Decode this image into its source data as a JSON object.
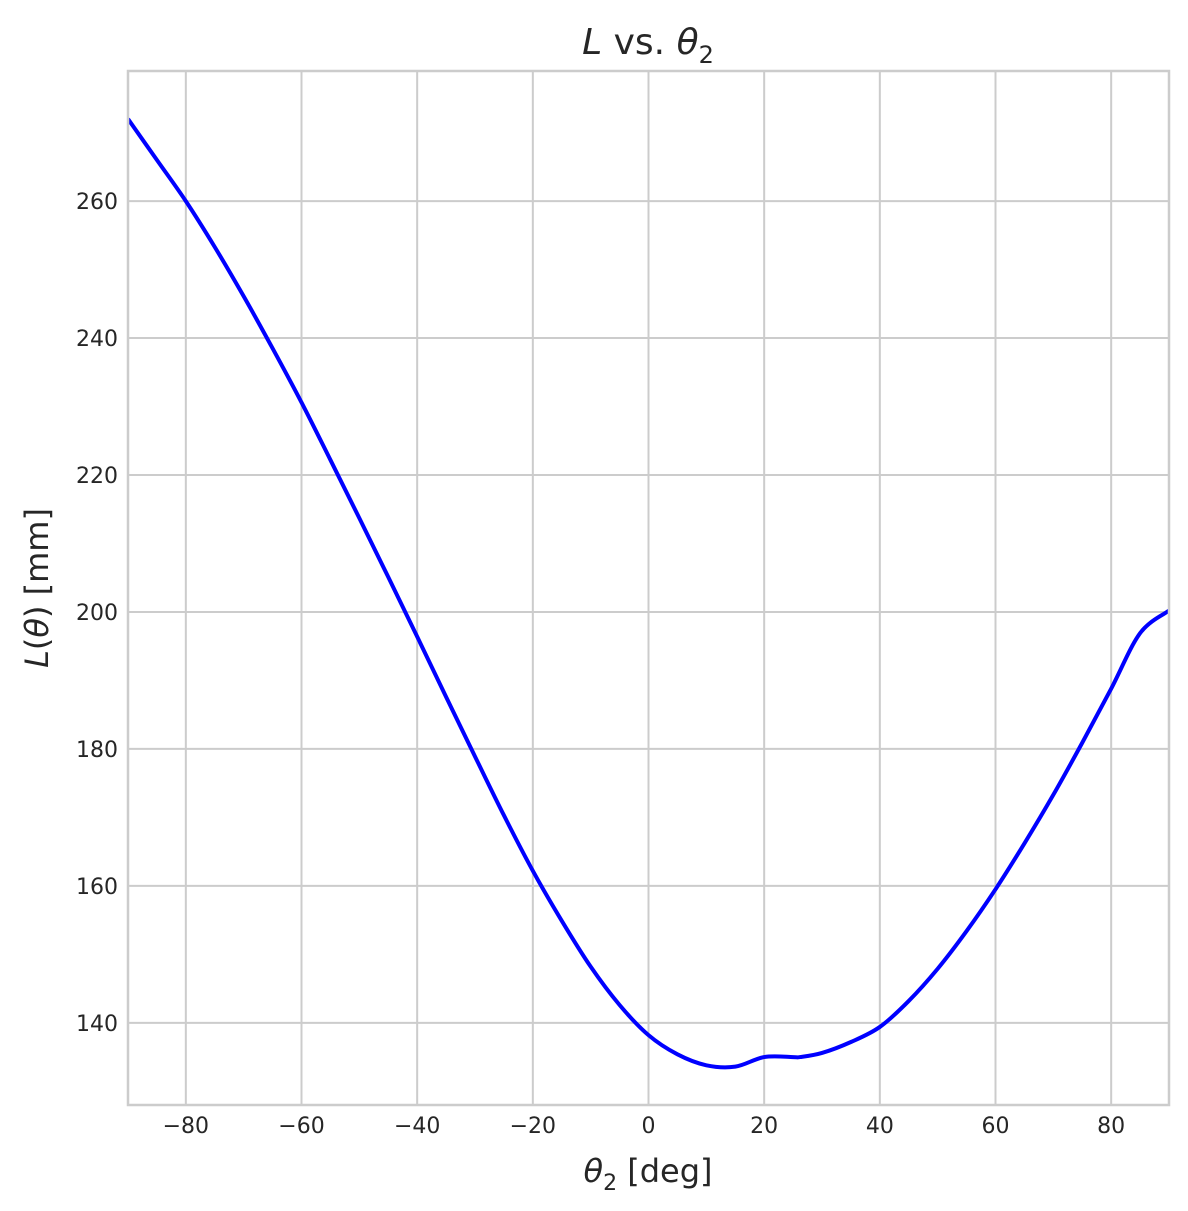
{
  "chart_data": {
    "type": "line",
    "title_parts": {
      "L": "L",
      "middle": " vs. ",
      "theta": "θ",
      "sub": "2"
    },
    "xlabel_parts": {
      "theta": "θ",
      "sub": "2",
      "unit": " [deg]"
    },
    "ylabel_parts": {
      "L": "L",
      "open": "(",
      "theta": "θ",
      "close": ")",
      "unit": " [mm]"
    },
    "xlim": [
      -90,
      90
    ],
    "ylim": [
      128,
      279
    ],
    "xticks": [
      -80,
      -60,
      -40,
      -20,
      0,
      20,
      40,
      60,
      80
    ],
    "xtick_labels": [
      "−80",
      "−60",
      "−40",
      "−20",
      "0",
      "20",
      "40",
      "60",
      "80"
    ],
    "yticks": [
      140,
      160,
      180,
      200,
      220,
      240,
      260
    ],
    "ytick_labels": [
      "140",
      "160",
      "180",
      "200",
      "220",
      "240",
      "260"
    ],
    "grid": true,
    "legend": "none",
    "series": [
      {
        "color": "#0000ff",
        "x": [
          -90,
          -85,
          -80,
          -75,
          -70,
          -65,
          -60,
          -55,
          -50,
          -45,
          -40,
          -35,
          -30,
          -25,
          -20,
          -15,
          -10,
          -5,
          0,
          5,
          10,
          15,
          20,
          25,
          26.2,
          30,
          35,
          40,
          45,
          50,
          55,
          60,
          65,
          70,
          75,
          80,
          85,
          90
        ],
        "y": [
          272.0,
          266.0,
          260.0,
          253.3,
          246.1,
          238.5,
          230.6,
          222.2,
          213.7,
          205.1,
          196.4,
          187.6,
          178.9,
          170.3,
          162.2,
          154.9,
          148.2,
          142.6,
          138.2,
          135.4,
          133.8,
          133.6,
          135.0,
          135.0,
          135.0,
          135.6,
          137.2,
          139.4,
          143.2,
          147.9,
          153.4,
          159.5,
          166.2,
          173.3,
          180.9,
          188.8,
          196.9,
          200.2
        ]
      }
    ]
  }
}
